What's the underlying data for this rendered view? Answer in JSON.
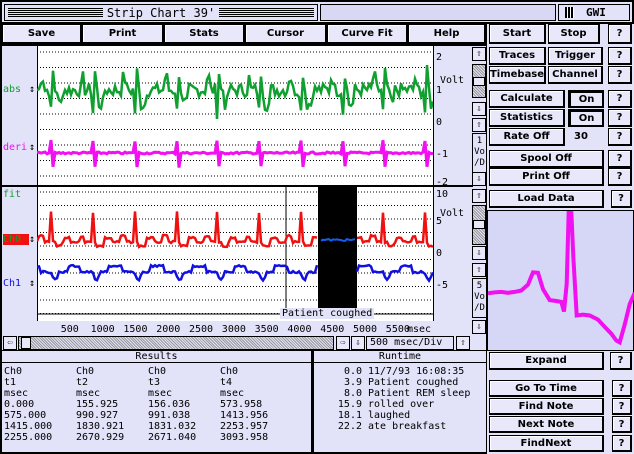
{
  "window": {
    "title": "Strip Chart 39'",
    "badge": "GWI"
  },
  "menu": [
    "Save",
    "Print",
    "Stats",
    "Cursor",
    "Curve Fit",
    "Help"
  ],
  "controls": {
    "start": "Start",
    "stop": "Stop",
    "traces": "Traces",
    "trigger": "Trigger",
    "timebase": "Timebase",
    "channel": "Channel",
    "calculate": "Calculate",
    "calculate_state": "On",
    "statistics": "Statistics",
    "statistics_state": "On",
    "rate": "Rate Off",
    "rate_value": "30",
    "spool": "Spool Off",
    "print": "Print Off",
    "load": "Load Data",
    "expand": "Expand",
    "go_to_time": "Go To Time",
    "find_note": "Find Note",
    "next_note": "Next Note",
    "find_next": "FindNext",
    "help": "?"
  },
  "top_plot": {
    "traces": [
      {
        "name": "abs",
        "color": "#10a030"
      },
      {
        "name": "deri",
        "color": "#f010f0"
      }
    ],
    "y_ticks": [
      "2",
      "1",
      "0",
      "-1",
      "-2"
    ],
    "unit": "Volt",
    "scale": [
      "1",
      "Vo",
      "/D"
    ]
  },
  "bottom_plot": {
    "traces": [
      {
        "name": "fit",
        "color": "#10a030"
      },
      {
        "name": "Ch0",
        "color": "#f01010"
      },
      {
        "name": "Ch1",
        "color": "#1010e0"
      }
    ],
    "y_ticks": [
      "10",
      "5",
      "0",
      "-5"
    ],
    "unit": "Volt",
    "scale": [
      "5",
      "Vo",
      "/D"
    ],
    "note": "Patient coughed"
  },
  "x_axis": {
    "ticks": [
      "500",
      "1000",
      "1500",
      "2000",
      "2500",
      "3000",
      "3500",
      "4000",
      "4500",
      "5000",
      "5500"
    ],
    "unit": "msec",
    "timebase": "500 msec/Div"
  },
  "results": {
    "title": "Results",
    "columns": [
      [
        "Ch0",
        "t1",
        "msec",
        "0.000",
        "575.000",
        "1415.000",
        "2255.000"
      ],
      [
        "Ch0",
        "t2",
        "msec",
        "155.925",
        "990.927",
        "1830.921",
        "2670.929"
      ],
      [
        "Ch0",
        "t3",
        "msec",
        "156.036",
        "991.038",
        "1831.032",
        "2671.040"
      ],
      [
        "Ch0",
        "t4",
        "msec",
        "573.958",
        "1413.956",
        "2253.957",
        "3093.958"
      ]
    ]
  },
  "runtime": {
    "title": "Runtime",
    "entries": [
      {
        "time": "0.0",
        "note": "11/7/93 16:08:35"
      },
      {
        "time": "3.9",
        "note": "Patient coughed"
      },
      {
        "time": "8.0",
        "note": "Patient REM sleep"
      },
      {
        "time": "15.9",
        "note": "rolled over"
      },
      {
        "time": "18.1",
        "note": "laughed"
      },
      {
        "time": "22.2",
        "note": "ate breakfast"
      }
    ]
  }
}
